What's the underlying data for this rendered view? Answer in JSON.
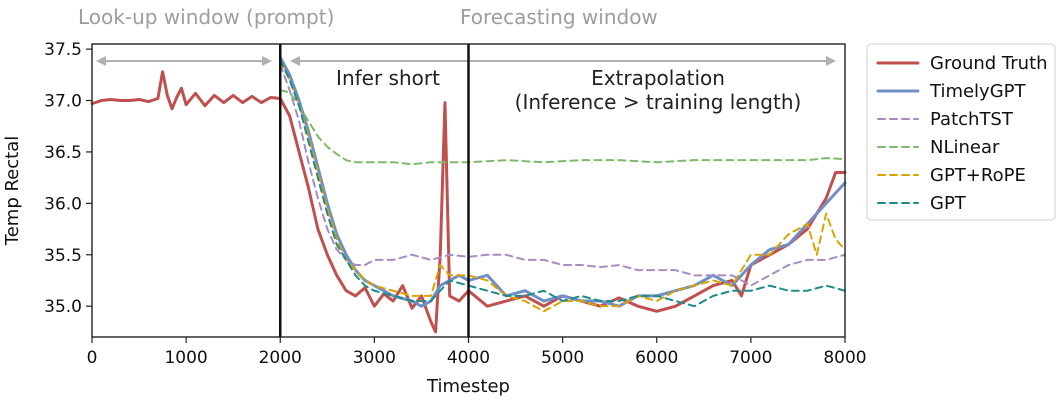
{
  "chart_data": {
    "type": "line",
    "xlabel": "Timestep",
    "ylabel": "Temp Rectal",
    "xlim": [
      0,
      8000
    ],
    "ylim": [
      34.7,
      37.55
    ],
    "xticks": [
      0,
      1000,
      2000,
      3000,
      4000,
      5000,
      6000,
      7000,
      8000
    ],
    "yticks": [
      35.0,
      35.5,
      36.0,
      36.5,
      37.0,
      37.5
    ],
    "grid": false,
    "legend_position": "outside-right",
    "annotations": {
      "lookup_window": "Look-up window (prompt)",
      "forecast_window": "Forecasting window",
      "infer_short": "Infer short",
      "extrapolation": "Extrapolation",
      "extrapolation_note": "(Inference > training length)"
    },
    "regions": {
      "prompt_end": 2000,
      "training_end": 4000
    },
    "series": [
      {
        "name": "Ground Truth",
        "color": "#c0504d",
        "style": "solid",
        "x": [
          0,
          100,
          200,
          300,
          400,
          500,
          600,
          700,
          750,
          800,
          850,
          900,
          950,
          1000,
          1100,
          1200,
          1300,
          1400,
          1500,
          1600,
          1700,
          1800,
          1900,
          2000,
          2100,
          2200,
          2300,
          2400,
          2500,
          2600,
          2700,
          2800,
          2900,
          3000,
          3100,
          3200,
          3300,
          3400,
          3500,
          3600,
          3650,
          3700,
          3750,
          3800,
          3900,
          4000,
          4200,
          4400,
          4600,
          4800,
          5000,
          5200,
          5400,
          5600,
          5800,
          6000,
          6200,
          6400,
          6600,
          6800,
          6900,
          7000,
          7200,
          7400,
          7600,
          7800,
          7900,
          8000
        ],
        "values": [
          36.97,
          37.0,
          37.01,
          37.0,
          37.0,
          37.01,
          36.99,
          37.02,
          37.28,
          37.05,
          36.92,
          37.03,
          37.12,
          36.96,
          37.07,
          36.95,
          37.05,
          36.98,
          37.05,
          36.98,
          37.04,
          36.98,
          37.03,
          37.02,
          36.85,
          36.5,
          36.15,
          35.75,
          35.5,
          35.3,
          35.15,
          35.1,
          35.18,
          35.0,
          35.12,
          35.05,
          35.2,
          34.98,
          35.1,
          34.85,
          34.75,
          35.5,
          36.98,
          35.1,
          35.05,
          35.15,
          35.0,
          35.05,
          35.1,
          35.0,
          35.1,
          35.05,
          35.0,
          35.08,
          35.0,
          34.95,
          35.0,
          35.1,
          35.2,
          35.25,
          35.1,
          35.4,
          35.5,
          35.6,
          35.75,
          36.05,
          36.3,
          36.3
        ]
      },
      {
        "name": "TimelyGPT",
        "color": "#6f8fc6",
        "style": "solid",
        "x": [
          2000,
          2100,
          2200,
          2300,
          2400,
          2500,
          2600,
          2700,
          2800,
          2900,
          3000,
          3200,
          3400,
          3500,
          3600,
          3700,
          3800,
          3900,
          4000,
          4200,
          4400,
          4600,
          4800,
          5000,
          5200,
          5400,
          5600,
          5800,
          6000,
          6200,
          6400,
          6600,
          6800,
          7000,
          7200,
          7400,
          7600,
          7800,
          8000
        ],
        "values": [
          37.42,
          37.25,
          37.0,
          36.7,
          36.35,
          36.0,
          35.7,
          35.5,
          35.35,
          35.25,
          35.2,
          35.1,
          35.05,
          35.0,
          35.05,
          35.2,
          35.25,
          35.3,
          35.25,
          35.3,
          35.1,
          35.15,
          35.05,
          35.1,
          35.05,
          35.05,
          35.0,
          35.1,
          35.1,
          35.15,
          35.2,
          35.3,
          35.2,
          35.4,
          35.55,
          35.6,
          35.8,
          36.0,
          36.2
        ]
      },
      {
        "name": "PatchTST",
        "color": "#a98bc4",
        "style": "dashed",
        "x": [
          2000,
          2100,
          2200,
          2300,
          2400,
          2500,
          2600,
          2700,
          2800,
          2900,
          3000,
          3200,
          3400,
          3600,
          3800,
          4000,
          4200,
          4400,
          4600,
          4800,
          5000,
          5200,
          5400,
          5600,
          5800,
          6000,
          6200,
          6400,
          6600,
          6800,
          7000,
          7200,
          7400,
          7600,
          7800,
          8000
        ],
        "values": [
          37.35,
          37.1,
          36.8,
          36.4,
          36.05,
          35.75,
          35.55,
          35.45,
          35.4,
          35.4,
          35.45,
          35.45,
          35.5,
          35.45,
          35.5,
          35.48,
          35.5,
          35.5,
          35.45,
          35.45,
          35.4,
          35.4,
          35.38,
          35.4,
          35.35,
          35.35,
          35.35,
          35.3,
          35.3,
          35.3,
          35.2,
          35.3,
          35.4,
          35.45,
          35.45,
          35.5
        ]
      },
      {
        "name": "NLinear",
        "color": "#7dba6a",
        "style": "dashed",
        "x": [
          2000,
          2100,
          2200,
          2300,
          2400,
          2500,
          2600,
          2700,
          2800,
          3000,
          3200,
          3400,
          3600,
          3800,
          4000,
          4400,
          4800,
          5200,
          5600,
          6000,
          6400,
          6800,
          7200,
          7600,
          7800,
          8000
        ],
        "values": [
          37.1,
          37.08,
          36.95,
          36.8,
          36.65,
          36.55,
          36.48,
          36.42,
          36.4,
          36.4,
          36.4,
          36.38,
          36.4,
          36.4,
          36.4,
          36.42,
          36.4,
          36.42,
          36.42,
          36.4,
          36.42,
          36.42,
          36.42,
          36.42,
          36.44,
          36.43
        ]
      },
      {
        "name": "GPT+RoPE",
        "color": "#d9a400",
        "style": "dashed",
        "x": [
          2000,
          2100,
          2200,
          2300,
          2400,
          2500,
          2600,
          2700,
          2800,
          2900,
          3000,
          3200,
          3400,
          3600,
          3700,
          3800,
          4000,
          4200,
          4400,
          4600,
          4800,
          5000,
          5200,
          5400,
          5600,
          5800,
          6000,
          6200,
          6400,
          6600,
          6800,
          7000,
          7200,
          7400,
          7600,
          7700,
          7800,
          7900,
          8000
        ],
        "values": [
          37.38,
          37.2,
          36.95,
          36.65,
          36.3,
          35.95,
          35.65,
          35.45,
          35.35,
          35.25,
          35.2,
          35.15,
          35.1,
          35.1,
          35.4,
          35.3,
          35.3,
          35.25,
          35.1,
          35.05,
          34.95,
          35.05,
          35.05,
          35.0,
          35.0,
          35.1,
          35.05,
          35.15,
          35.2,
          35.25,
          35.2,
          35.5,
          35.5,
          35.7,
          35.8,
          35.5,
          35.9,
          35.65,
          35.55
        ]
      },
      {
        "name": "GPT",
        "color": "#1f8b8b",
        "style": "dashed",
        "x": [
          2000,
          2100,
          2200,
          2300,
          2400,
          2500,
          2600,
          2700,
          2800,
          2900,
          3000,
          3200,
          3400,
          3600,
          3800,
          4000,
          4200,
          4400,
          4600,
          4800,
          5000,
          5200,
          5400,
          5600,
          5800,
          6000,
          6200,
          6400,
          6600,
          6800,
          7000,
          7200,
          7400,
          7600,
          7800,
          8000
        ],
        "values": [
          37.4,
          37.2,
          36.95,
          36.6,
          36.25,
          35.9,
          35.6,
          35.45,
          35.3,
          35.2,
          35.15,
          35.1,
          35.05,
          35.05,
          35.25,
          35.2,
          35.15,
          35.1,
          35.1,
          35.15,
          35.05,
          35.1,
          35.05,
          35.05,
          35.1,
          35.1,
          35.05,
          35.0,
          35.1,
          35.15,
          35.15,
          35.2,
          35.15,
          35.15,
          35.2,
          35.15
        ]
      }
    ]
  }
}
